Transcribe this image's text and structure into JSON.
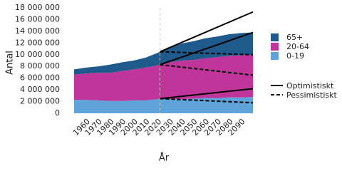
{
  "chart_data": {
    "type": "stacked-area",
    "y_label": "Antal",
    "x_label": "År",
    "x": [
      1950,
      1960,
      1970,
      1980,
      1990,
      2000,
      2010,
      2020,
      2022,
      2030,
      2040,
      2050,
      2060,
      2070,
      2080,
      2090,
      2100
    ],
    "series": [
      {
        "name": "0-19",
        "color": "#5fa3db",
        "values": [
          2300000,
          2300000,
          2200000,
          2100000,
          2100000,
          2200000,
          2200000,
          2400000,
          2500000,
          2400000,
          2400000,
          2500000,
          2600000,
          2600000,
          2700000,
          2700000,
          2800000
        ]
      },
      {
        "name": "20-64",
        "color": "#c0359a",
        "values": [
          4300000,
          4500000,
          4700000,
          4800000,
          5100000,
          5300000,
          5600000,
          5800000,
          5800000,
          6300000,
          6600000,
          6600000,
          6800000,
          7000000,
          7100000,
          7200000,
          7200000
        ]
      },
      {
        "name": "65+",
        "color": "#1f5a8c",
        "values": [
          900000,
          1000000,
          1100000,
          1400000,
          1500000,
          1500000,
          1700000,
          2100000,
          2200000,
          2500000,
          2900000,
          3200000,
          3400000,
          3500000,
          3700000,
          3800000,
          3800000
        ]
      }
    ],
    "scenarios": [
      {
        "name": "Optimistiskt",
        "dashed": false,
        "x": [
          2022,
          2100
        ],
        "lines": [
          [
            2500000,
            4200000
          ],
          [
            8300000,
            13800000
          ],
          [
            10500000,
            17300000
          ]
        ]
      },
      {
        "name": "Pessimistiskt",
        "dashed": true,
        "x": [
          2022,
          2100
        ],
        "lines": [
          [
            2500000,
            1800000
          ],
          [
            8300000,
            6500000
          ],
          [
            10500000,
            10000000
          ]
        ]
      }
    ],
    "vline": 2022,
    "xlim": [
      1950,
      2100
    ],
    "xticks": [
      1960,
      1970,
      1980,
      1990,
      2000,
      2010,
      2020,
      2030,
      2040,
      2050,
      2060,
      2070,
      2080,
      2090
    ],
    "ylim": [
      0,
      18000000
    ],
    "yticks": [
      0,
      {
        "value": 2000000,
        "label": "2 000 000"
      },
      {
        "value": 4000000,
        "label": "4 000 000"
      },
      {
        "value": 6000000,
        "label": "6 000 000"
      },
      {
        "value": 8000000,
        "label": "8 000 000"
      },
      {
        "value": 10000000,
        "label": "10 000 000"
      },
      {
        "value": 12000000,
        "label": "12 000 000"
      },
      {
        "value": 14000000,
        "label": "14 000 000"
      },
      {
        "value": 16000000,
        "label": "16 000 000"
      },
      {
        "value": 18000000,
        "label": "18 000 000"
      }
    ],
    "legend": "right"
  }
}
